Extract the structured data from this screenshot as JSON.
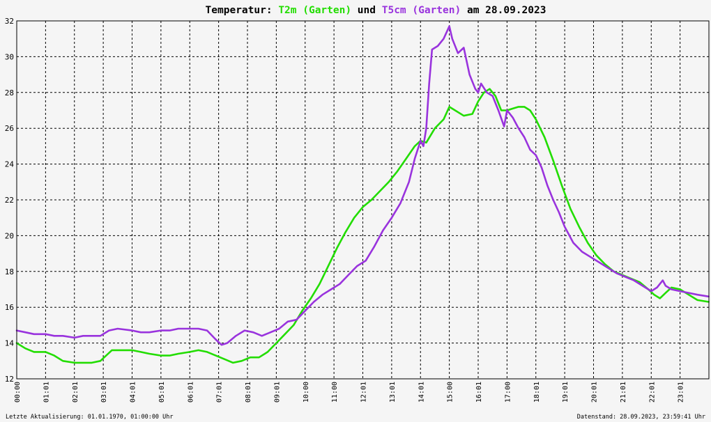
{
  "title": {
    "prefix": "Temperatur: ",
    "series1": "T2m (Garten)",
    "mid": " und ",
    "series2": "T5cm (Garten)",
    "suffix": " am 28.09.2023"
  },
  "footer": {
    "left": "Letzte Aktualisierung: 01.01.1970, 01:00:00 Uhr",
    "right": "Datenstand: 28.09.2023, 23:59:41 Uhr"
  },
  "colors": {
    "t2m": "#22dd00",
    "t5cm": "#9933dd",
    "grid": "#000000",
    "background": "#f5f5f5"
  },
  "chart_data": {
    "type": "line",
    "title": "Temperatur: T2m (Garten) und T5cm (Garten) am 28.09.2023",
    "xlabel": "",
    "ylabel": "",
    "xlim": [
      0,
      24
    ],
    "ylim": [
      12,
      32
    ],
    "y_ticks": [
      12,
      14,
      16,
      18,
      20,
      22,
      24,
      26,
      28,
      30,
      32
    ],
    "x_ticks": [
      "00:00",
      "01:01",
      "02:01",
      "03:01",
      "04:01",
      "05:01",
      "06:01",
      "07:01",
      "08:01",
      "09:01",
      "10:00",
      "11:00",
      "12:01",
      "13:01",
      "14:01",
      "15:00",
      "16:01",
      "17:00",
      "18:01",
      "19:01",
      "20:01",
      "21:01",
      "22:01",
      "23:01"
    ],
    "x_tick_hours": [
      0,
      1,
      2,
      3,
      4,
      5,
      6,
      7,
      8,
      9,
      10,
      11,
      12,
      13,
      14,
      15,
      16,
      17,
      18,
      19,
      20,
      21,
      22,
      23
    ],
    "grid": true,
    "series": [
      {
        "name": "T2m (Garten)",
        "color": "#22dd00",
        "x": [
          0,
          0.3,
          0.6,
          1.0,
          1.3,
          1.6,
          2.0,
          2.3,
          2.6,
          2.9,
          3.1,
          3.3,
          3.6,
          4.0,
          4.3,
          4.6,
          5.0,
          5.3,
          5.6,
          6.0,
          6.3,
          6.6,
          6.9,
          7.2,
          7.5,
          7.8,
          8.1,
          8.4,
          8.7,
          9.0,
          9.3,
          9.6,
          9.9,
          10.2,
          10.5,
          10.8,
          11.1,
          11.4,
          11.7,
          12.0,
          12.3,
          12.6,
          12.9,
          13.2,
          13.5,
          13.8,
          14.0,
          14.2,
          14.5,
          14.8,
          15.0,
          15.2,
          15.5,
          15.8,
          16.0,
          16.2,
          16.4,
          16.6,
          16.8,
          17.0,
          17.2,
          17.4,
          17.6,
          17.8,
          18.0,
          18.3,
          18.6,
          18.9,
          19.2,
          19.5,
          19.8,
          20.1,
          20.4,
          20.7,
          21.0,
          21.3,
          21.6,
          21.9,
          22.1,
          22.3,
          22.5,
          22.7,
          23.0,
          23.3,
          23.6,
          23.99
        ],
        "y": [
          14.0,
          13.7,
          13.5,
          13.5,
          13.3,
          13.0,
          12.9,
          12.9,
          12.9,
          13.0,
          13.3,
          13.6,
          13.6,
          13.6,
          13.5,
          13.4,
          13.3,
          13.3,
          13.4,
          13.5,
          13.6,
          13.5,
          13.3,
          13.1,
          12.9,
          13.0,
          13.2,
          13.2,
          13.5,
          14.0,
          14.5,
          15.0,
          15.8,
          16.5,
          17.3,
          18.3,
          19.3,
          20.2,
          21.0,
          21.6,
          22.0,
          22.5,
          23.0,
          23.6,
          24.3,
          25.0,
          25.3,
          25.2,
          26.0,
          26.5,
          27.2,
          27.0,
          26.7,
          26.8,
          27.5,
          28.0,
          28.2,
          27.8,
          27.0,
          27.0,
          27.1,
          27.2,
          27.2,
          27.0,
          26.5,
          25.5,
          24.2,
          22.8,
          21.5,
          20.5,
          19.6,
          18.9,
          18.4,
          18.0,
          17.8,
          17.6,
          17.4,
          17.0,
          16.7,
          16.5,
          16.8,
          17.1,
          17.0,
          16.7,
          16.4,
          16.3
        ]
      },
      {
        "name": "T5cm (Garten)",
        "color": "#9933dd",
        "x": [
          0,
          0.3,
          0.6,
          1.0,
          1.3,
          1.6,
          2.0,
          2.3,
          2.6,
          2.9,
          3.2,
          3.5,
          4.0,
          4.3,
          4.6,
          5.0,
          5.3,
          5.6,
          6.0,
          6.3,
          6.6,
          6.9,
          7.1,
          7.3,
          7.6,
          7.9,
          8.2,
          8.5,
          8.8,
          9.1,
          9.4,
          9.7,
          10.0,
          10.3,
          10.6,
          10.9,
          11.2,
          11.5,
          11.8,
          12.1,
          12.4,
          12.7,
          13.0,
          13.3,
          13.6,
          13.8,
          14.0,
          14.1,
          14.2,
          14.3,
          14.4,
          14.6,
          14.8,
          15.0,
          15.1,
          15.3,
          15.5,
          15.7,
          15.9,
          16.0,
          16.1,
          16.3,
          16.5,
          16.7,
          16.9,
          17.0,
          17.1,
          17.2,
          17.4,
          17.6,
          17.8,
          18.0,
          18.2,
          18.4,
          18.6,
          18.8,
          19.0,
          19.3,
          19.6,
          19.9,
          20.2,
          20.5,
          20.8,
          21.1,
          21.4,
          21.7,
          22.0,
          22.2,
          22.4,
          22.5,
          22.7,
          23.0,
          23.3,
          23.6,
          23.99
        ],
        "y": [
          14.7,
          14.6,
          14.5,
          14.5,
          14.4,
          14.4,
          14.3,
          14.4,
          14.4,
          14.4,
          14.7,
          14.8,
          14.7,
          14.6,
          14.6,
          14.7,
          14.7,
          14.8,
          14.8,
          14.8,
          14.7,
          14.2,
          13.9,
          14.0,
          14.4,
          14.7,
          14.6,
          14.4,
          14.6,
          14.8,
          15.2,
          15.3,
          15.8,
          16.3,
          16.7,
          17.0,
          17.3,
          17.8,
          18.3,
          18.6,
          19.4,
          20.3,
          21.0,
          21.8,
          23.0,
          24.3,
          25.3,
          25.0,
          26.0,
          28.5,
          30.4,
          30.6,
          31.0,
          31.7,
          31.0,
          30.2,
          30.5,
          29.0,
          28.2,
          28.0,
          28.5,
          28.0,
          27.8,
          27.0,
          26.1,
          27.0,
          26.8,
          26.6,
          26.0,
          25.5,
          24.8,
          24.5,
          23.8,
          22.8,
          22.0,
          21.3,
          20.5,
          19.6,
          19.1,
          18.8,
          18.5,
          18.2,
          17.9,
          17.7,
          17.5,
          17.2,
          16.9,
          17.1,
          17.5,
          17.2,
          17.0,
          16.9,
          16.8,
          16.7,
          16.6
        ]
      }
    ]
  }
}
